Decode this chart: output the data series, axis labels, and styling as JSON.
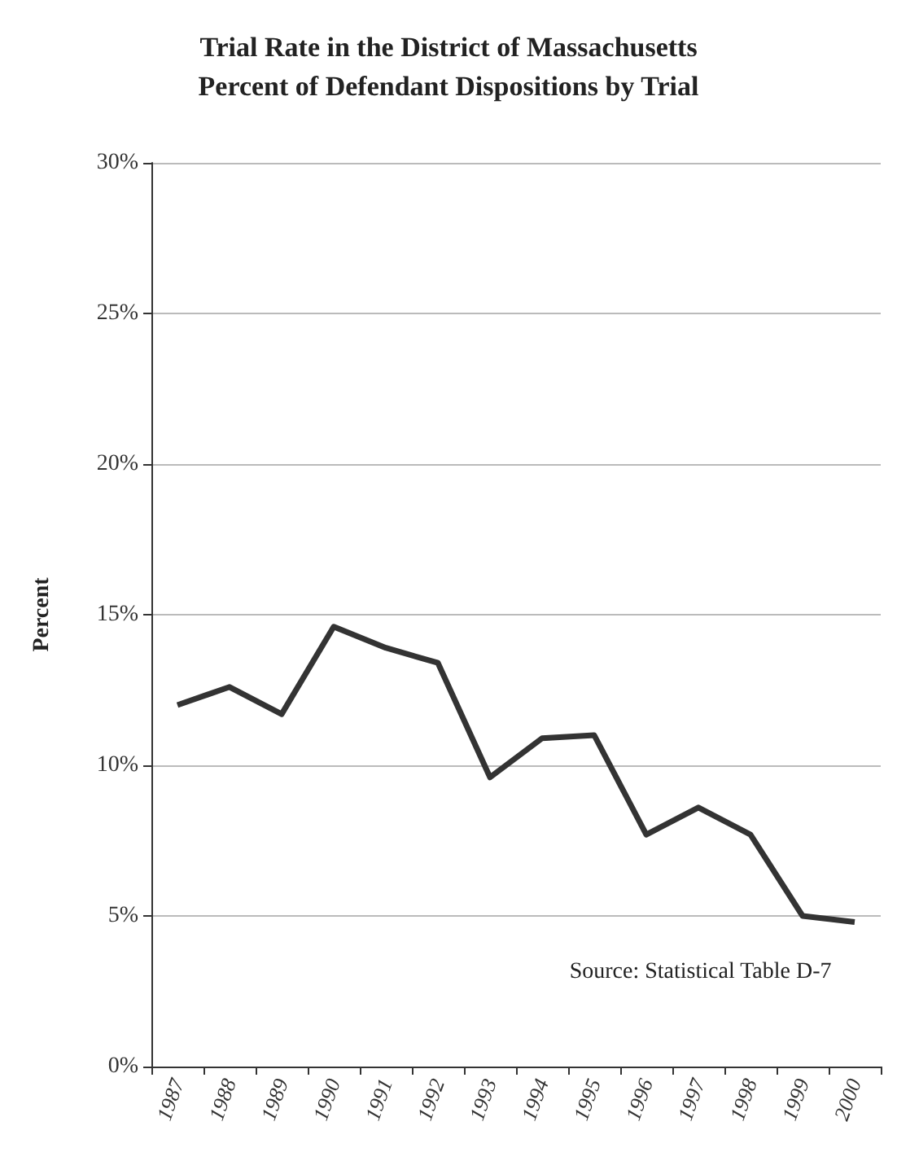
{
  "chart_data": {
    "type": "line",
    "title": "Trial Rate in the District of Massachusetts\nPercent of Defendant Dispositions by Trial",
    "ylabel": "Percent",
    "categories": [
      "1987",
      "1988",
      "1989",
      "1990",
      "1991",
      "1992",
      "1993",
      "1994",
      "1995",
      "1996",
      "1997",
      "1998",
      "1999",
      "2000"
    ],
    "series": [
      {
        "color": "#333333",
        "values": [
          12.0,
          12.6,
          11.7,
          14.6,
          13.9,
          13.4,
          9.6,
          10.9,
          11.0,
          7.7,
          8.6,
          7.7,
          5.0,
          4.8
        ]
      }
    ],
    "ylim": [
      0,
      30
    ],
    "yticks": [
      {
        "value": 0,
        "label": "0%"
      },
      {
        "value": 5,
        "label": "5%"
      },
      {
        "value": 10,
        "label": "10%"
      },
      {
        "value": 15,
        "label": "15%"
      },
      {
        "value": 20,
        "label": "20%"
      },
      {
        "value": 25,
        "label": "25%"
      },
      {
        "value": 30,
        "label": "30%"
      }
    ],
    "grid": "y",
    "marker": "none",
    "line_style": "solid",
    "annotations": [
      "Source: Statistical Table D-7"
    ]
  }
}
